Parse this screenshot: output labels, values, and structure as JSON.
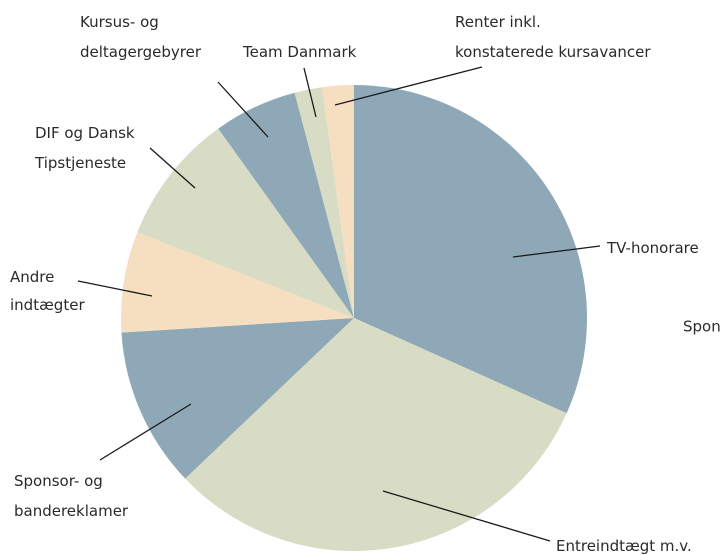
{
  "chart_data": {
    "type": "pie",
    "categories": [
      [
        "TV-honorare"
      ],
      [
        "Entreindtægt m.v."
      ],
      [
        "Sponsor- og",
        "bandereklamer"
      ],
      [
        "Andre",
        "indtægter"
      ],
      [
        "DIF og Dansk",
        "Tipstjeneste"
      ],
      [
        "Kursus- og",
        "deltagergebyrer"
      ],
      [
        "Team Danmark"
      ],
      [
        "Renter inkl.",
        "konstaterede kursavancer"
      ]
    ],
    "values": [
      31.7,
      31.2,
      11.1,
      7.0,
      9.1,
      5.8,
      1.9,
      2.2
    ],
    "colors": [
      "#8fa8b8",
      "#d9dcc4",
      "#8fa8b8",
      "#f5dfc0",
      "#d9dcc4",
      "#8fa8b8",
      "#d9dcc4",
      "#f5dfc0"
    ],
    "annotations": [
      "Spon"
    ]
  }
}
